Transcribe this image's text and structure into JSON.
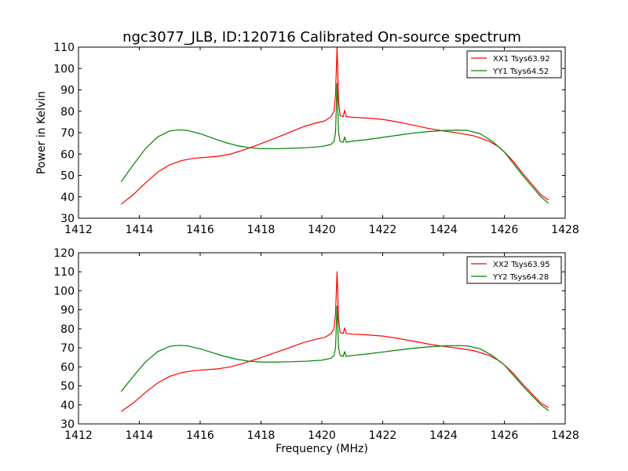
{
  "figure": {
    "title": "ngc3077_JLB, ID:120716 Calibrated On-source spectrum",
    "ylabel": "Power in Kelvin",
    "xlabel": "Frequency (MHz)"
  },
  "chart_data": [
    {
      "type": "line",
      "title": "ngc3077_JLB, ID:120716 Calibrated On-source spectrum",
      "xlabel": "",
      "ylabel": "Power in Kelvin",
      "xlim": [
        1412,
        1428
      ],
      "ylim": [
        30,
        110
      ],
      "xticks": [
        1412,
        1414,
        1416,
        1418,
        1420,
        1422,
        1424,
        1426,
        1428
      ],
      "yticks": [
        30,
        40,
        50,
        60,
        70,
        80,
        90,
        100,
        110
      ],
      "grid": false,
      "legend_position": "top-right",
      "series": [
        {
          "name": "XX1 Tsys63.92",
          "color": "#ff0000",
          "x": [
            1413.4,
            1413.8,
            1414.2,
            1414.6,
            1415.0,
            1415.4,
            1415.8,
            1416.2,
            1416.6,
            1417.0,
            1417.4,
            1417.8,
            1418.2,
            1418.6,
            1419.0,
            1419.4,
            1419.8,
            1420.1,
            1420.3,
            1420.4,
            1420.45,
            1420.5,
            1420.55,
            1420.6,
            1420.7,
            1420.75,
            1420.8,
            1421.0,
            1421.5,
            1422.0,
            1422.5,
            1423.0,
            1423.5,
            1424.0,
            1424.5,
            1425.0,
            1425.5,
            1425.8,
            1426.0,
            1426.3,
            1426.6,
            1426.9,
            1427.2,
            1427.45
          ],
          "y": [
            36.5,
            41,
            46.5,
            51.5,
            55,
            57,
            58,
            58.5,
            59,
            60,
            61.8,
            63.8,
            66,
            68.2,
            70.5,
            72.8,
            74.5,
            75.5,
            77.5,
            80,
            88,
            110,
            85,
            78,
            77.5,
            80.5,
            77.5,
            77.2,
            76.8,
            76.2,
            75,
            73.5,
            72,
            70.8,
            69.8,
            68.5,
            66,
            63.5,
            61,
            56.5,
            51,
            46,
            41,
            38.5
          ]
        },
        {
          "name": "YY1 Tsys64.52",
          "color": "#008000",
          "x": [
            1413.4,
            1413.8,
            1414.2,
            1414.6,
            1415.0,
            1415.3,
            1415.6,
            1416.0,
            1416.4,
            1416.8,
            1417.2,
            1417.6,
            1418.0,
            1418.5,
            1419.0,
            1419.5,
            1420.0,
            1420.3,
            1420.4,
            1420.45,
            1420.5,
            1420.55,
            1420.6,
            1420.7,
            1420.75,
            1420.8,
            1421.0,
            1421.5,
            1422.0,
            1422.5,
            1423.0,
            1423.5,
            1424.0,
            1424.5,
            1424.8,
            1425.2,
            1425.6,
            1426.0,
            1426.3,
            1426.6,
            1426.9,
            1427.2,
            1427.45
          ],
          "y": [
            47,
            55,
            62.5,
            68,
            70.8,
            71.3,
            71,
            69.5,
            67.5,
            65.5,
            64,
            63,
            62.5,
            62.5,
            62.7,
            63,
            63.5,
            64.5,
            66,
            70,
            93,
            70,
            66,
            65.5,
            68,
            65.5,
            66,
            66.8,
            67.8,
            68.8,
            69.8,
            70.5,
            71,
            71.2,
            71,
            69.5,
            66,
            61,
            55.5,
            50,
            45,
            40,
            37
          ]
        }
      ]
    },
    {
      "type": "line",
      "title": "",
      "xlabel": "Frequency (MHz)",
      "ylabel": "",
      "xlim": [
        1412,
        1428
      ],
      "ylim": [
        30,
        120
      ],
      "xticks": [
        1412,
        1414,
        1416,
        1418,
        1420,
        1422,
        1424,
        1426,
        1428
      ],
      "yticks": [
        30,
        40,
        50,
        60,
        70,
        80,
        90,
        100,
        110,
        120
      ],
      "grid": false,
      "legend_position": "top-right",
      "series": [
        {
          "name": "XX2 Tsys63.95",
          "color": "#ff0000",
          "x": [
            1413.4,
            1413.8,
            1414.2,
            1414.6,
            1415.0,
            1415.4,
            1415.8,
            1416.2,
            1416.6,
            1417.0,
            1417.4,
            1417.8,
            1418.2,
            1418.6,
            1419.0,
            1419.4,
            1419.8,
            1420.1,
            1420.3,
            1420.4,
            1420.45,
            1420.5,
            1420.55,
            1420.6,
            1420.7,
            1420.75,
            1420.8,
            1421.0,
            1421.5,
            1422.0,
            1422.5,
            1423.0,
            1423.5,
            1424.0,
            1424.5,
            1425.0,
            1425.5,
            1425.8,
            1426.0,
            1426.3,
            1426.6,
            1426.9,
            1427.2,
            1427.45
          ],
          "y": [
            36.5,
            41,
            46.5,
            51.5,
            55,
            57,
            58,
            58.5,
            59,
            60,
            61.8,
            63.8,
            66,
            68.2,
            70.5,
            72.8,
            74.5,
            75.5,
            77.5,
            80,
            88,
            110,
            85,
            78,
            77.5,
            80.5,
            77.5,
            77.2,
            76.8,
            76.2,
            75,
            73.5,
            72,
            70.8,
            69.8,
            68.5,
            66,
            63.5,
            61,
            56.5,
            51,
            46,
            41,
            38.5
          ]
        },
        {
          "name": "YY2 Tsys64.28",
          "color": "#008000",
          "x": [
            1413.4,
            1413.8,
            1414.2,
            1414.6,
            1415.0,
            1415.3,
            1415.6,
            1416.0,
            1416.4,
            1416.8,
            1417.2,
            1417.6,
            1418.0,
            1418.5,
            1419.0,
            1419.5,
            1420.0,
            1420.3,
            1420.4,
            1420.45,
            1420.5,
            1420.55,
            1420.6,
            1420.7,
            1420.75,
            1420.8,
            1421.0,
            1421.5,
            1422.0,
            1422.5,
            1423.0,
            1423.5,
            1424.0,
            1424.5,
            1424.8,
            1425.2,
            1425.6,
            1426.0,
            1426.3,
            1426.6,
            1426.9,
            1427.2,
            1427.45
          ],
          "y": [
            47,
            55,
            62.5,
            68,
            70.8,
            71.3,
            71,
            69.5,
            67.5,
            65.5,
            64,
            63,
            62.5,
            62.5,
            62.7,
            63,
            63.5,
            64.5,
            66,
            70,
            92,
            70,
            66,
            65.5,
            68,
            65.5,
            66,
            66.8,
            67.8,
            68.8,
            69.8,
            70.5,
            71,
            71.2,
            71,
            69.5,
            66,
            61,
            55.5,
            50,
            45,
            40,
            37
          ]
        }
      ]
    }
  ]
}
